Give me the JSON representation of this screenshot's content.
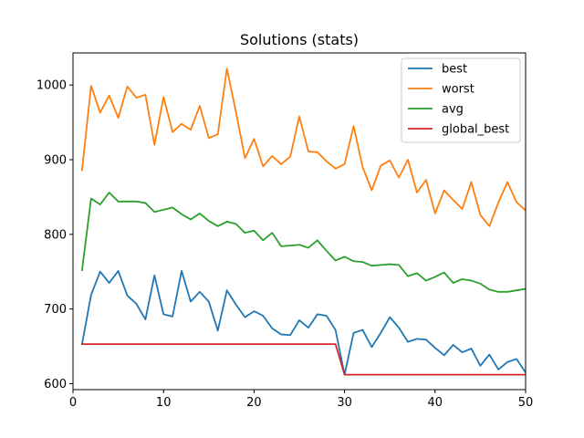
{
  "chart_data": {
    "type": "line",
    "title": "Solutions (stats)",
    "xlabel": "",
    "ylabel": "",
    "xlim": [
      0,
      50
    ],
    "ylim": [
      592,
      1043
    ],
    "xticks": [
      0,
      10,
      20,
      30,
      40,
      50
    ],
    "yticks": [
      600,
      700,
      800,
      900,
      1000
    ],
    "grid": false,
    "legend_position": "top-right",
    "x": [
      1,
      2,
      3,
      4,
      5,
      6,
      7,
      8,
      9,
      10,
      11,
      12,
      13,
      14,
      15,
      16,
      17,
      18,
      19,
      20,
      21,
      22,
      23,
      24,
      25,
      26,
      27,
      28,
      29,
      30,
      31,
      32,
      33,
      34,
      35,
      36,
      37,
      38,
      39,
      40,
      41,
      42,
      43,
      44,
      45,
      46,
      47,
      48,
      49,
      50
    ],
    "series": [
      {
        "name": "best",
        "color": "#1f77b4",
        "values": [
          653,
          719,
          750,
          735,
          751,
          718,
          707,
          686,
          745,
          693,
          690,
          751,
          710,
          723,
          710,
          671,
          725,
          706,
          689,
          697,
          691,
          674,
          666,
          665,
          685,
          675,
          693,
          691,
          672,
          612,
          668,
          672,
          649,
          668,
          689,
          675,
          656,
          660,
          659,
          648,
          638,
          652,
          642,
          647,
          624,
          639,
          619,
          629,
          633,
          615
        ]
      },
      {
        "name": "worst",
        "color": "#ff7f0e",
        "values": [
          886,
          999,
          963,
          986,
          956,
          998,
          983,
          987,
          920,
          984,
          937,
          948,
          940,
          972,
          929,
          934,
          1022,
          964,
          902,
          928,
          891,
          905,
          894,
          904,
          958,
          911,
          910,
          898,
          888,
          894,
          945,
          890,
          859,
          892,
          899,
          876,
          900,
          856,
          873,
          828,
          859,
          846,
          834,
          870,
          826,
          811,
          843,
          870,
          843,
          832
        ]
      },
      {
        "name": "avg",
        "color": "#2ca02c",
        "values": [
          752,
          848,
          840,
          856,
          844,
          844,
          844,
          842,
          830,
          833,
          836,
          827,
          820,
          828,
          818,
          811,
          817,
          814,
          802,
          805,
          792,
          802,
          784,
          785,
          786,
          782,
          792,
          778,
          765,
          770,
          764,
          763,
          758,
          759,
          760,
          759,
          744,
          748,
          738,
          743,
          749,
          735,
          740,
          738,
          734,
          726,
          723,
          723,
          725,
          727
        ]
      },
      {
        "name": "global_best",
        "color": "#d62728",
        "values": [
          653,
          653,
          653,
          653,
          653,
          653,
          653,
          653,
          653,
          653,
          653,
          653,
          653,
          653,
          653,
          653,
          653,
          653,
          653,
          653,
          653,
          653,
          653,
          653,
          653,
          653,
          653,
          653,
          653,
          612,
          612,
          612,
          612,
          612,
          612,
          612,
          612,
          612,
          612,
          612,
          612,
          612,
          612,
          612,
          612,
          612,
          612,
          612,
          612,
          612
        ]
      }
    ]
  }
}
